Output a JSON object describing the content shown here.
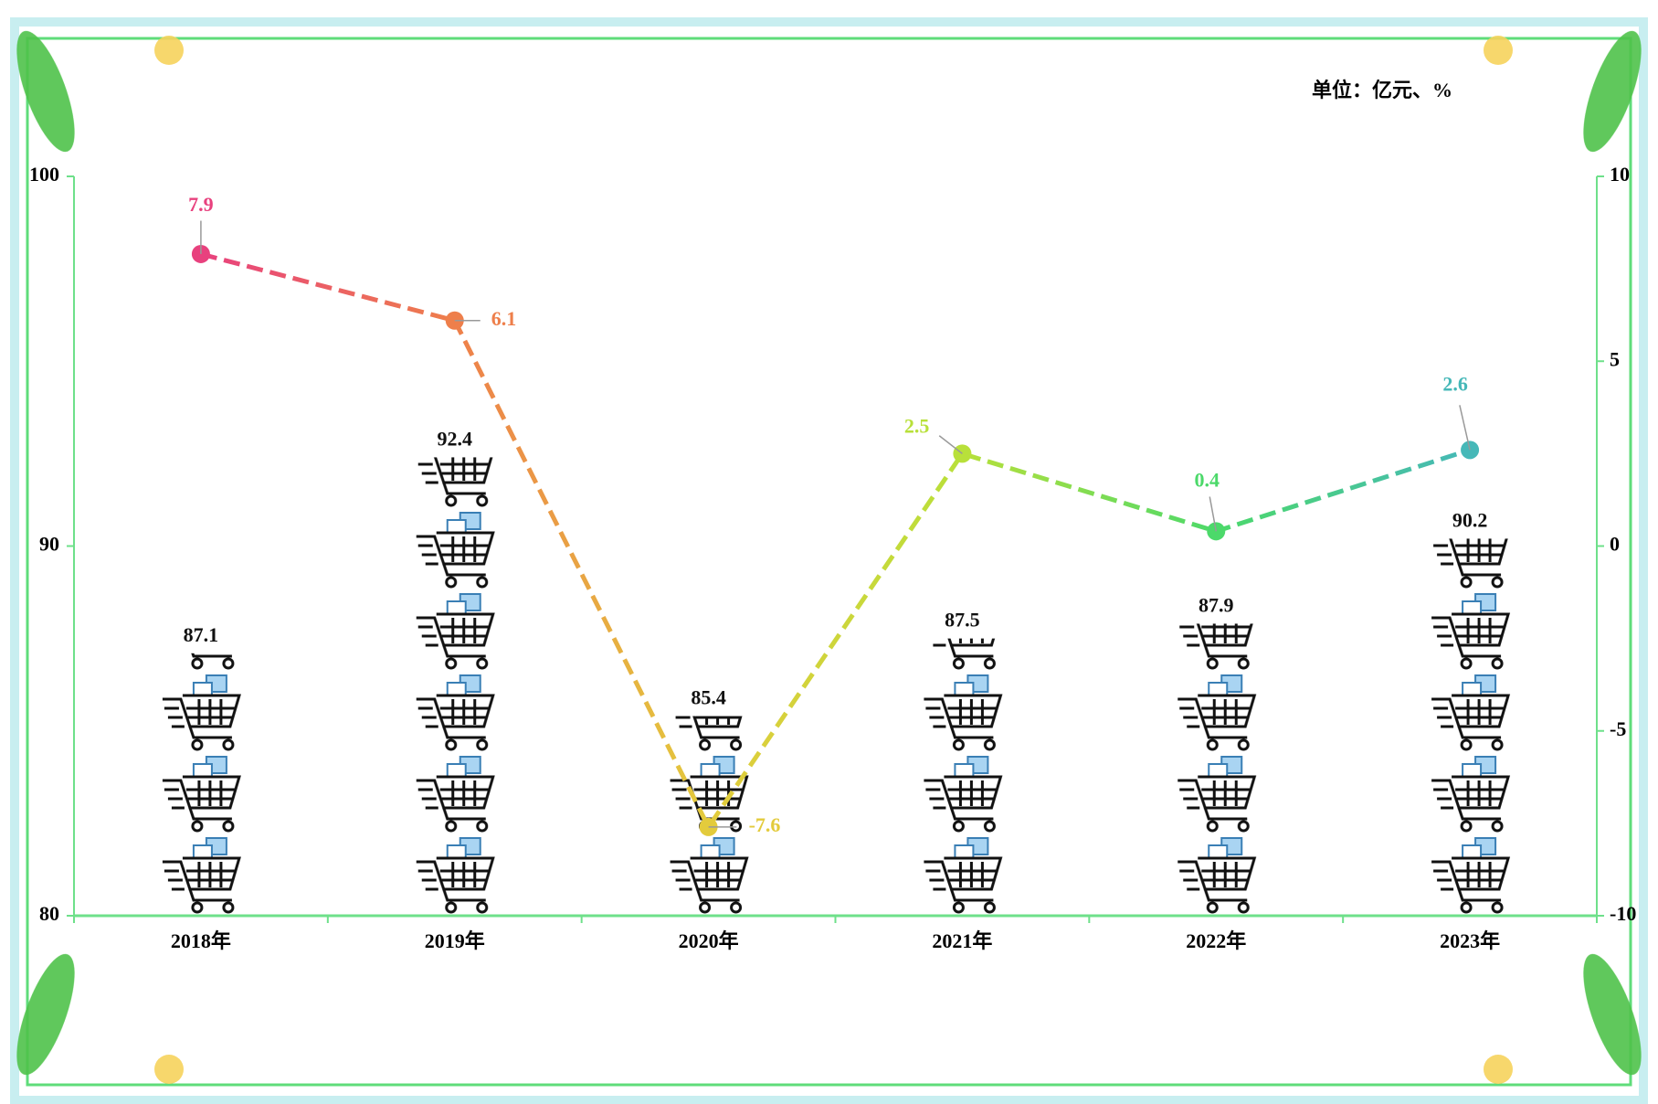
{
  "chart_data": {
    "type": "bar-line",
    "unit_note": "单位：亿元、%",
    "categories": [
      "2018年",
      "2019年",
      "2020年",
      "2021年",
      "2022年",
      "2023年"
    ],
    "series": [
      {
        "type": "bar",
        "values": [
          87.1,
          92.4,
          85.4,
          87.5,
          87.9,
          90.2
        ],
        "color": "#111111"
      },
      {
        "type": "line",
        "axis": "y2",
        "values": [
          7.9,
          6.1,
          -7.6,
          2.5,
          0.4,
          2.6
        ],
        "colors": [
          "#e8417e",
          "#ee7f4b",
          "#e3cb3c",
          "#b8e03a",
          "#4cd96a",
          "#46b8b8"
        ]
      }
    ],
    "ylim": [
      80,
      100
    ],
    "yticks": [
      80,
      90,
      100
    ],
    "y2lim": [
      -10,
      10
    ],
    "y2ticks": [
      -10,
      -5,
      0,
      5,
      10
    ]
  }
}
